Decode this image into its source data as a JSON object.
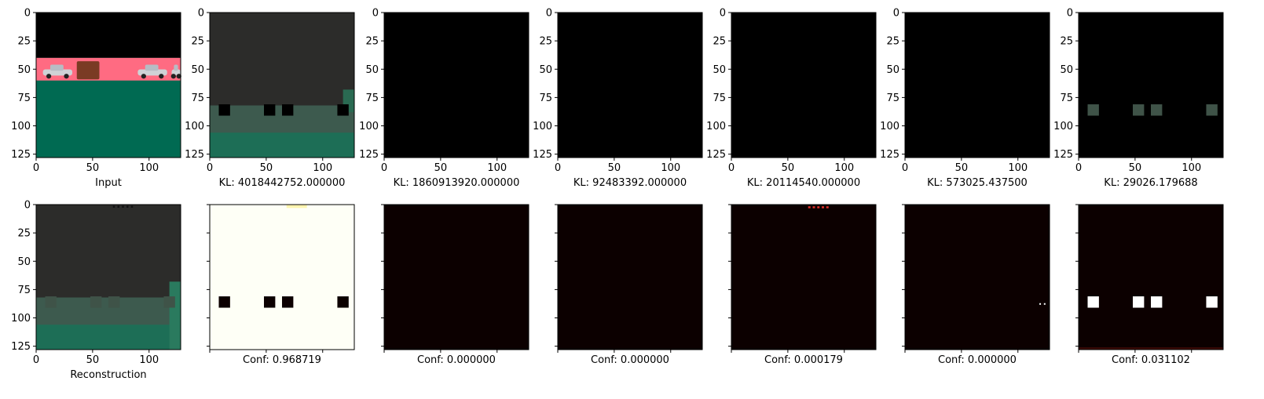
{
  "chart_data": {
    "type": "image-grid",
    "layout": {
      "rows": 2,
      "cols": 7
    },
    "image_extent": [
      0,
      128
    ],
    "x_ticks": [
      0,
      50,
      100
    ],
    "y_ticks": [
      0,
      25,
      50,
      75,
      100,
      125
    ],
    "top_row": [
      {
        "caption": "Input",
        "content": "input"
      },
      {
        "caption": "KL: 4018442752.000000",
        "content": "recon_squares",
        "squares": "black"
      },
      {
        "caption": "KL: 1860913920.000000",
        "content": "blank"
      },
      {
        "caption": "KL: 92483392.000000",
        "content": "blank"
      },
      {
        "caption": "KL: 20114540.000000",
        "content": "blank"
      },
      {
        "caption": "KL: 573025.437500",
        "content": "blank"
      },
      {
        "caption": "KL: 29026.179688",
        "content": "squares_only"
      }
    ],
    "bottom_row": [
      {
        "caption": "Reconstruction",
        "content": "recon_full",
        "show_x_labels": true,
        "show_y_labels": true
      },
      {
        "caption": "Conf: 0.968719",
        "content": "conf_white"
      },
      {
        "caption": "Conf: 0.000000",
        "content": "conf_dark"
      },
      {
        "caption": "Conf: 0.000000",
        "content": "conf_dark"
      },
      {
        "caption": "Conf: 0.000179",
        "content": "conf_dark_top_dots"
      },
      {
        "caption": "Conf: 0.000000",
        "content": "conf_dark_side_dots"
      },
      {
        "caption": "Conf: 0.031102",
        "content": "conf_dark_white_squares"
      }
    ],
    "square_positions_x": [
      13,
      53,
      69,
      118
    ],
    "square_center_y": 86,
    "square_size": 10,
    "colors": {
      "sky": "#000000",
      "road": "#ff6b82",
      "ground": "#006a52",
      "recon_top": "#2c2c2a",
      "recon_bottom": "#1d6e56",
      "recon_band": "#3d5a4e",
      "square_gray": "#3f5348",
      "conf_white": "#fefff6",
      "conf_dark": "#0c0000",
      "hot_red": "#e0302a"
    }
  }
}
